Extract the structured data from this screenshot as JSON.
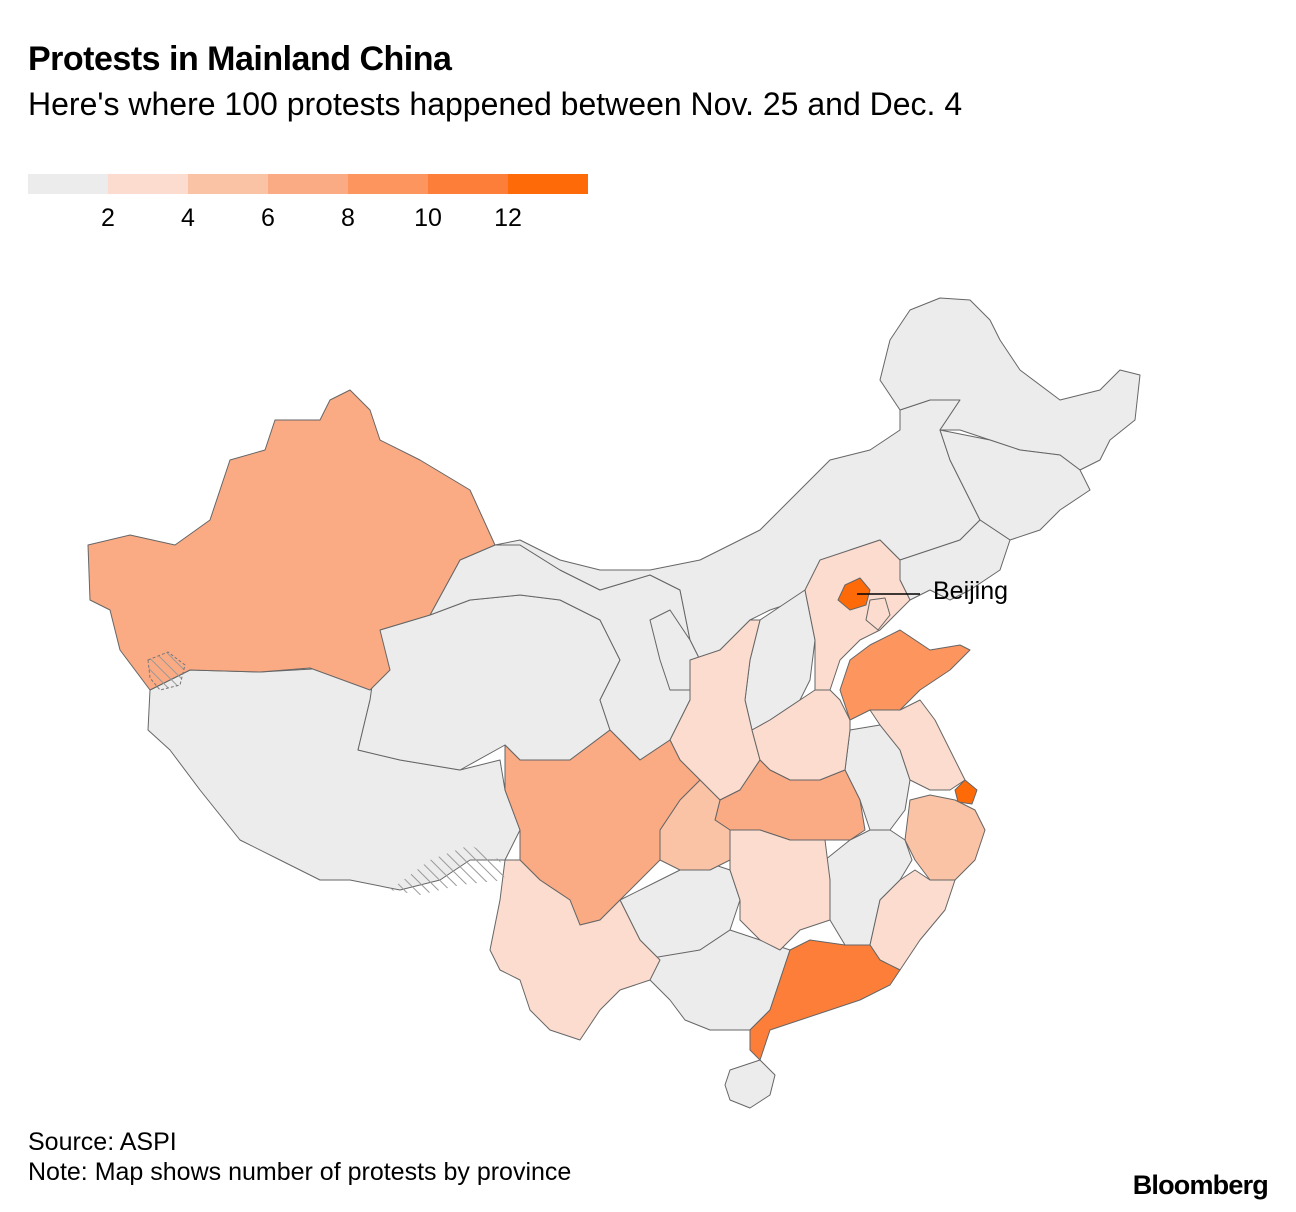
{
  "header": {
    "title": "Protests in Mainland China",
    "subtitle": "Here's where 100 protests happened between Nov. 25 and Dec. 4"
  },
  "legend": {
    "colors": [
      "#ececec",
      "#fbdccf",
      "#fbc3a5",
      "#fbab84",
      "#fd955e",
      "#fd7e39",
      "#ff6a08"
    ],
    "ticks": [
      "2",
      "4",
      "6",
      "8",
      "10",
      "12"
    ]
  },
  "map": {
    "annotation": "Beijing",
    "border_color": "#666666",
    "hatch_color": "#888888",
    "regions": [
      {
        "name": "Xinjiang",
        "level": 3
      },
      {
        "name": "Tibet",
        "level": 0
      },
      {
        "name": "Qinghai",
        "level": 0
      },
      {
        "name": "Gansu",
        "level": 0
      },
      {
        "name": "Inner Mongolia",
        "level": 0
      },
      {
        "name": "Heilongjiang",
        "level": 0
      },
      {
        "name": "Jilin",
        "level": 0
      },
      {
        "name": "Liaoning",
        "level": 0
      },
      {
        "name": "Ningxia",
        "level": 0
      },
      {
        "name": "Shanxi",
        "level": 0
      },
      {
        "name": "Shaanxi",
        "level": 1
      },
      {
        "name": "Hebei",
        "level": 1
      },
      {
        "name": "Tianjin",
        "level": 1
      },
      {
        "name": "Beijing",
        "level": 6
      },
      {
        "name": "Shandong",
        "level": 4
      },
      {
        "name": "Henan",
        "level": 1
      },
      {
        "name": "Jiangsu",
        "level": 1
      },
      {
        "name": "Anhui",
        "level": 0
      },
      {
        "name": "Shanghai",
        "level": 6
      },
      {
        "name": "Zhejiang",
        "level": 2
      },
      {
        "name": "Hubei",
        "level": 3
      },
      {
        "name": "Chongqing",
        "level": 2
      },
      {
        "name": "Sichuan",
        "level": 3
      },
      {
        "name": "Hunan",
        "level": 1
      },
      {
        "name": "Jiangxi",
        "level": 0
      },
      {
        "name": "Fujian",
        "level": 1
      },
      {
        "name": "Guizhou",
        "level": 0
      },
      {
        "name": "Yunnan",
        "level": 1
      },
      {
        "name": "Guangxi",
        "level": 0
      },
      {
        "name": "Guangdong",
        "level": 5
      },
      {
        "name": "Hainan",
        "level": 0
      }
    ]
  },
  "footer": {
    "source": "Source: ASPI",
    "note": "Note: Map shows number of protests by province",
    "brand": "Bloomberg"
  }
}
